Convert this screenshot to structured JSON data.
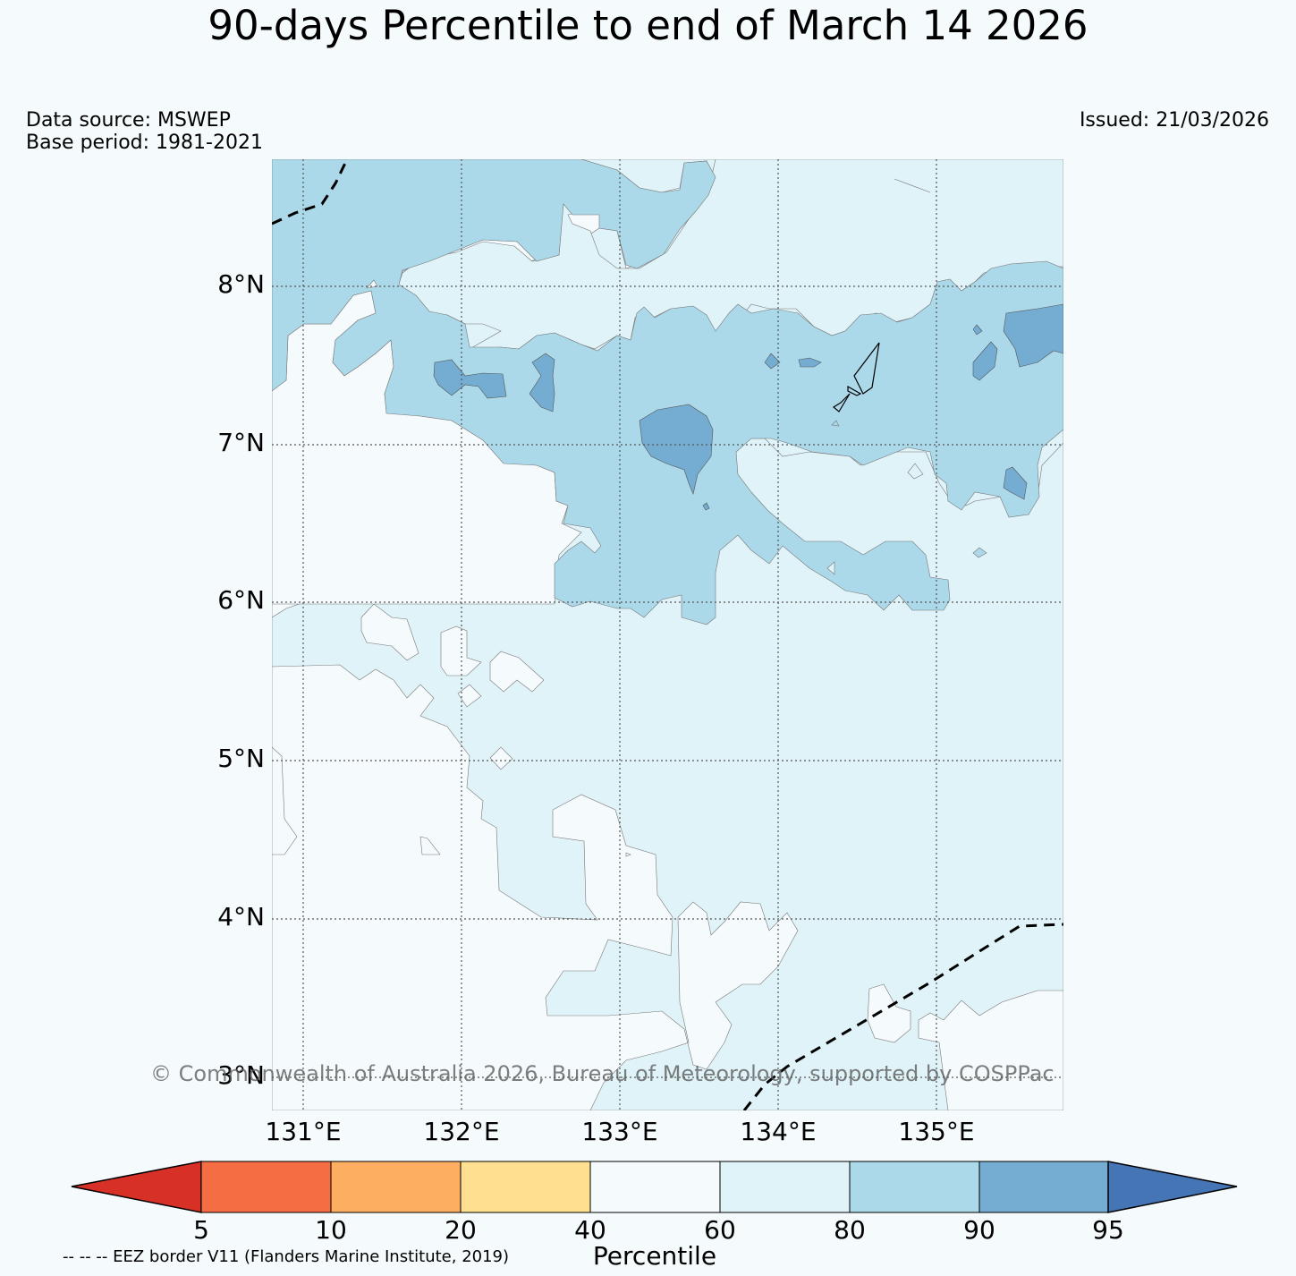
{
  "title": "90-days Percentile to end of March 14 2026",
  "data_source": "Data source: MSWEP",
  "base_period": "Base period: 1981-2021",
  "issued": "Issued: 21/03/2026",
  "copyright": "© Commonwealth of Australia 2026, Bureau of Meteorology, supported by COSPPac",
  "eez_note": "-- -- -- EEZ border V11 (Flanders Marine Institute, 2019)",
  "map": {
    "lon_range": [
      130.8,
      135.8
    ],
    "lat_range": [
      2.8,
      8.8
    ],
    "lat_ticks": [
      "8°N",
      "7°N",
      "6°N",
      "5°N",
      "4°N",
      "3°N"
    ],
    "lon_ticks": [
      "131°E",
      "132°E",
      "133°E",
      "134°E",
      "135°E"
    ],
    "feature": "Island outline near 133.5°E–134.6°E, 7.3°N–7.8°N",
    "eez_border": "dashed"
  },
  "colorbar": {
    "title": "Percentile",
    "ticks": [
      "5",
      "10",
      "20",
      "40",
      "60",
      "80",
      "90",
      "95"
    ],
    "colors": [
      "#d73027",
      "#f46d43",
      "#fdae61",
      "#fee090",
      "#f5fafd",
      "#e0f3f8",
      "#abd9e9",
      "#74add1",
      "#4575b4"
    ]
  },
  "palette": {
    "p60_80": "#e0f3f8",
    "p80_90": "#abd9e9",
    "p90_95": "#74add1",
    "below60": "#f5fafd"
  }
}
